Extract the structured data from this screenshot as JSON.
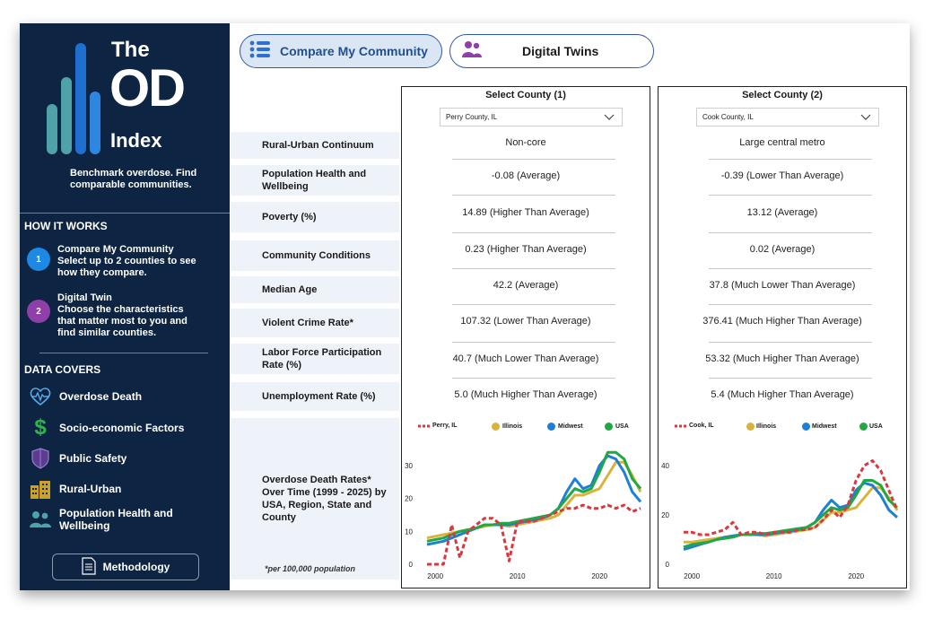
{
  "logo": {
    "the": "The",
    "od": "OD",
    "index": "Index"
  },
  "tagline": "Benchmark overdose. Find comparable communities.",
  "how_it_works": {
    "heading": "HOW IT WORKS",
    "steps": [
      {
        "num": "1",
        "title": "Compare My Community",
        "text": "Select up to 2 counties to see how they compare.",
        "color": "#1e88e5"
      },
      {
        "num": "2",
        "title": "Digital Twin",
        "text": "Choose the characteristics that matter most to you and find similar counties.",
        "color": "#8e3fa8"
      }
    ]
  },
  "data_covers": {
    "heading": "DATA COVERS",
    "items": [
      {
        "label": "Overdose Death",
        "icon": "heartbeat-icon"
      },
      {
        "label": "Socio-economic Factors",
        "icon": "dollar-icon"
      },
      {
        "label": "Public Safety",
        "icon": "shield-icon"
      },
      {
        "label": "Rural-Urban",
        "icon": "buildings-icon"
      },
      {
        "label": "Population Health and Wellbeing",
        "icon": "people-icon"
      }
    ]
  },
  "methodology_label": "Methodology",
  "tabs": {
    "compare": "Compare My Community",
    "twins": "Digital Twins"
  },
  "row_labels": [
    "Rural-Urban Continuum",
    "Population Health and Wellbeing",
    "Poverty (%)",
    "Community Conditions",
    "Median Age",
    "Violent Crime Rate*",
    "Labor Force Participation Rate (%)",
    "Unemployment Rate (%)",
    "Overdose Death Rates* Over Time (1999 - 2025) by USA, Region, State and County"
  ],
  "footnote": "*per 100,000 population",
  "panels": [
    {
      "title": "Select County (1)",
      "selected": "Perry County, IL",
      "values": [
        "Non-core",
        "-0.08 (Average)",
        "14.89 (Higher Than Average)",
        "0.23 (Higher Than Average)",
        "42.2 (Average)",
        "107.32 (Lower Than Average)",
        "40.7 (Much Lower Than Average)",
        "5.0 (Much Higher Than Average)"
      ],
      "legend": [
        "Perry, IL",
        "Illinois",
        "Midwest",
        "USA"
      ]
    },
    {
      "title": "Select County (2)",
      "selected": "Cook County, IL",
      "values": [
        "Large central metro",
        "-0.39 (Lower Than Average)",
        "13.12 (Average)",
        "0.02 (Average)",
        "37.8 (Much Lower Than Average)",
        "376.41 (Much Higher Than Average)",
        "53.32 (Much Higher Than Average)",
        "5.4 (Much Higher Than Average)"
      ],
      "legend": [
        "Cook, IL",
        "Illinois",
        "Midwest",
        "USA"
      ]
    }
  ],
  "colors": {
    "county": "#d9393e",
    "state": "#d9b43c",
    "region": "#1e7fd6",
    "usa": "#21a845",
    "sidebar": "#0d2442"
  },
  "chart_data": [
    {
      "type": "line",
      "x": [
        1999,
        2000,
        2001,
        2002,
        2003,
        2004,
        2005,
        2006,
        2007,
        2008,
        2009,
        2010,
        2011,
        2012,
        2013,
        2014,
        2015,
        2016,
        2017,
        2018,
        2019,
        2020,
        2021,
        2022,
        2023,
        2024,
        2025
      ],
      "xticks": [
        2000,
        2010,
        2020
      ],
      "yticks": [
        0,
        10,
        20,
        30
      ],
      "ylim": [
        0,
        36
      ],
      "series": [
        {
          "name": "Perry, IL",
          "values": [
            0,
            0,
            0,
            12,
            2,
            10,
            12,
            14,
            14,
            12,
            1,
            13,
            13,
            13,
            14,
            15,
            16,
            17,
            17,
            18,
            17,
            17,
            18,
            17,
            18,
            16,
            17
          ]
        },
        {
          "name": "Illinois",
          "values": [
            8,
            8.5,
            9,
            9.5,
            10,
            10.5,
            11,
            11.5,
            12,
            12,
            11.5,
            12,
            12.5,
            13,
            13.5,
            14,
            15,
            18,
            21,
            21,
            22,
            23,
            27,
            31,
            31,
            27,
            22
          ]
        },
        {
          "name": "Midwest",
          "values": [
            6,
            6.5,
            7,
            8,
            9,
            10,
            11,
            12,
            12,
            12,
            12,
            12.5,
            13,
            13.5,
            14,
            15,
            17,
            22,
            26,
            23,
            24,
            30,
            33,
            32,
            28,
            22,
            19
          ]
        },
        {
          "name": "USA",
          "values": [
            7,
            7.5,
            8,
            9,
            10,
            10.5,
            11,
            12,
            12,
            12.5,
            12.5,
            13,
            13.5,
            14,
            14.5,
            15,
            17,
            20,
            23,
            22,
            23,
            28,
            34,
            34,
            32,
            26,
            23
          ]
        }
      ]
    },
    {
      "type": "line",
      "x": [
        1999,
        2000,
        2001,
        2002,
        2003,
        2004,
        2005,
        2006,
        2007,
        2008,
        2009,
        2010,
        2011,
        2012,
        2013,
        2014,
        2015,
        2016,
        2017,
        2018,
        2019,
        2020,
        2021,
        2022,
        2023,
        2024,
        2025
      ],
      "xticks": [
        2000,
        2010,
        2020
      ],
      "yticks": [
        0,
        20,
        40
      ],
      "ylim": [
        0,
        48
      ],
      "series": [
        {
          "name": "Cook, IL",
          "values": [
            13,
            13,
            12,
            12,
            13,
            14,
            17,
            12,
            13,
            13,
            12,
            13,
            13,
            13,
            14,
            14,
            15,
            18,
            22,
            19,
            24,
            34,
            40,
            42,
            38,
            30,
            22
          ]
        },
        {
          "name": "Illinois",
          "values": [
            9,
            9,
            9.5,
            10,
            10.5,
            11,
            11.5,
            12,
            12,
            12,
            11.5,
            12,
            12.5,
            13,
            13.5,
            14,
            15,
            18,
            21,
            21,
            22,
            23,
            27,
            31,
            31,
            27,
            22
          ]
        },
        {
          "name": "Midwest",
          "values": [
            6,
            7,
            8,
            9,
            10,
            11,
            11.5,
            12,
            12,
            12,
            12,
            12.5,
            13,
            13.5,
            14,
            15,
            17,
            22,
            26,
            23,
            24,
            30,
            33,
            32,
            28,
            22,
            19
          ]
        },
        {
          "name": "USA",
          "values": [
            7,
            8,
            8.5,
            9,
            10,
            10.5,
            11,
            12,
            12,
            12.5,
            12.5,
            13,
            13.5,
            14,
            14.5,
            15,
            17,
            20,
            23,
            22,
            23,
            28,
            34,
            34,
            32,
            26,
            23
          ]
        }
      ]
    }
  ]
}
